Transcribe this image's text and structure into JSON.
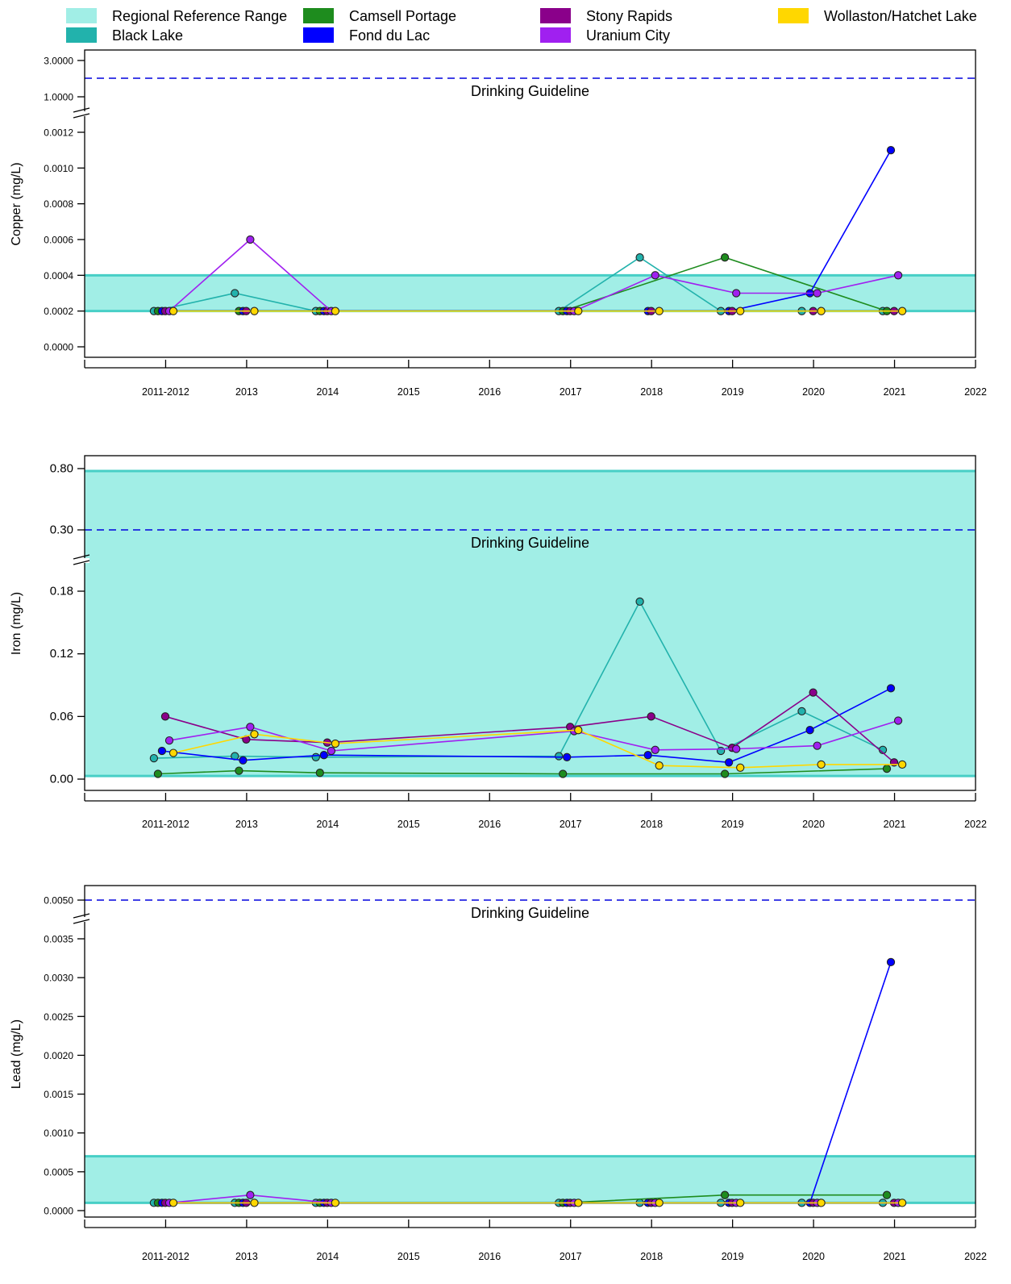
{
  "legend": [
    {
      "label": "Regional Reference Range",
      "color": "#a1eee6"
    },
    {
      "label": "Black Lake",
      "color": "#22b2ac"
    },
    {
      "label": "Camsell Portage",
      "color": "#1e8c1e"
    },
    {
      "label": "Fond du Lac",
      "color": "#0000ff"
    },
    {
      "label": "Stony Rapids",
      "color": "#8a008a"
    },
    {
      "label": "Uranium City",
      "color": "#a020f0"
    },
    {
      "label": "Wollaston/Hatchet Lake",
      "color": "#ffd700"
    }
  ],
  "guideline_label": "Drinking Guideline",
  "x_tick_labels": [
    "2011-2012",
    "2013",
    "2014",
    "2015",
    "2016",
    "2017",
    "2018",
    "2019",
    "2020",
    "2021",
    "2022"
  ],
  "chart_data": [
    {
      "type": "line",
      "ylabel": "Copper (mg/L)",
      "y_tick_labels_lower": [
        "0.0000",
        "0.0002",
        "0.0004",
        "0.0006",
        "0.0008",
        "0.0010",
        "0.0012"
      ],
      "y_tick_labels_upper": [
        "1.0000",
        "3.0000"
      ],
      "lower_ylim": [
        0,
        0.0012
      ],
      "upper_ylim": [
        1,
        3
      ],
      "drinking_guideline": 2.0,
      "reference_range": [
        0.0002,
        0.0004
      ],
      "sample_years": [
        2012,
        2013,
        2014,
        2017,
        2018,
        2019,
        2020,
        2021
      ],
      "series": [
        {
          "name": "Black Lake",
          "values": [
            0.0002,
            0.0003,
            0.0002,
            0.0002,
            0.0005,
            0.0002,
            0.0002,
            0.0002
          ]
        },
        {
          "name": "Camsell Portage",
          "values": [
            0.0002,
            0.0002,
            0.0002,
            0.0002,
            null,
            0.0005,
            null,
            0.0002
          ]
        },
        {
          "name": "Fond du Lac",
          "values": [
            0.0002,
            0.0002,
            0.0002,
            0.0002,
            0.0002,
            0.0002,
            0.0003,
            0.0011
          ]
        },
        {
          "name": "Stony Rapids",
          "values": [
            0.0002,
            0.0002,
            0.0002,
            0.0002,
            0.0002,
            0.0002,
            0.0002,
            0.0002
          ]
        },
        {
          "name": "Uranium City",
          "values": [
            0.0002,
            0.0006,
            0.0002,
            0.0002,
            0.0004,
            0.0003,
            0.0003,
            0.0004
          ]
        },
        {
          "name": "Wollaston/Hatchet Lake",
          "values": [
            0.0002,
            0.0002,
            0.0002,
            0.0002,
            0.0002,
            0.0002,
            0.0002,
            0.0002
          ]
        }
      ]
    },
    {
      "type": "line",
      "ylabel": "Iron (mg/L)",
      "y_tick_labels_lower": [
        "0.00",
        "0.06",
        "0.12",
        "0.18"
      ],
      "y_tick_labels_upper": [
        "0.30",
        "0.80"
      ],
      "lower_ylim": [
        0,
        0.18
      ],
      "upper_ylim": [
        0.3,
        0.8
      ],
      "drinking_guideline": 0.3,
      "reference_range": [
        0.003,
        0.78
      ],
      "sample_years": [
        2012,
        2013,
        2014,
        2017,
        2018,
        2019,
        2020,
        2021
      ],
      "series": [
        {
          "name": "Black Lake",
          "values": [
            0.02,
            0.022,
            0.021,
            0.022,
            0.17,
            0.027,
            0.065,
            0.028
          ]
        },
        {
          "name": "Camsell Portage",
          "values": [
            0.005,
            0.008,
            0.006,
            0.005,
            null,
            0.005,
            null,
            0.01
          ]
        },
        {
          "name": "Fond du Lac",
          "values": [
            0.027,
            0.018,
            0.023,
            0.021,
            0.023,
            0.016,
            0.047,
            0.087
          ]
        },
        {
          "name": "Stony Rapids",
          "values": [
            0.06,
            0.038,
            0.035,
            0.05,
            0.06,
            0.03,
            0.083,
            0.016
          ]
        },
        {
          "name": "Uranium City",
          "values": [
            0.037,
            0.05,
            0.027,
            0.046,
            0.028,
            0.029,
            0.032,
            0.056
          ]
        },
        {
          "name": "Wollaston/Hatchet Lake",
          "values": [
            0.025,
            0.043,
            0.034,
            0.047,
            0.013,
            0.011,
            0.014,
            0.014
          ]
        }
      ]
    },
    {
      "type": "line",
      "ylabel": "Lead (mg/L)",
      "y_tick_labels_lower": [
        "0.0000",
        "0.0005",
        "0.0010",
        "0.0015",
        "0.0020",
        "0.0025",
        "0.0030",
        "0.0035"
      ],
      "y_tick_labels_upper": [
        "0.0050"
      ],
      "lower_ylim": [
        0,
        0.0035
      ],
      "upper_ylim": [
        0.005,
        0.005
      ],
      "drinking_guideline": 0.005,
      "reference_range": [
        0.0001,
        0.0007
      ],
      "sample_years": [
        2012,
        2013,
        2014,
        2017,
        2018,
        2019,
        2020,
        2021
      ],
      "series": [
        {
          "name": "Black Lake",
          "values": [
            0.0001,
            0.0001,
            0.0001,
            0.0001,
            0.0001,
            0.0001,
            0.0001,
            0.0001
          ]
        },
        {
          "name": "Camsell Portage",
          "values": [
            0.0001,
            0.0001,
            0.0001,
            0.0001,
            null,
            0.0002,
            null,
            0.0002
          ]
        },
        {
          "name": "Fond du Lac",
          "values": [
            0.0001,
            0.0001,
            0.0001,
            0.0001,
            0.0001,
            0.0001,
            0.0001,
            0.0032
          ]
        },
        {
          "name": "Stony Rapids",
          "values": [
            0.0001,
            0.0001,
            0.0001,
            0.0001,
            0.0001,
            0.0001,
            0.0001,
            0.0001
          ]
        },
        {
          "name": "Uranium City",
          "values": [
            0.0001,
            0.0002,
            0.0001,
            0.0001,
            0.0001,
            0.0001,
            0.0001,
            0.0001
          ]
        },
        {
          "name": "Wollaston/Hatchet Lake",
          "values": [
            0.0001,
            0.0001,
            0.0001,
            0.0001,
            0.0001,
            0.0001,
            0.0001,
            0.0001
          ]
        }
      ]
    }
  ]
}
